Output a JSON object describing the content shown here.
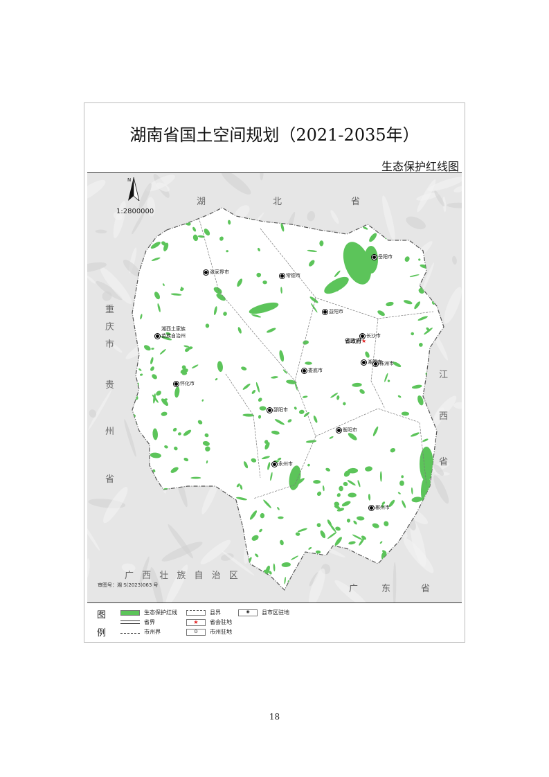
{
  "title": "湖南省国土空间规划（2021-2035年）",
  "subtitle": "生态保护红线图",
  "map": {
    "north_label": "N",
    "scale": "1:2800000",
    "approval": "审图号：湘 S(2023)063 号",
    "neighbors": {
      "hubei": [
        "湖",
        "北",
        "省"
      ],
      "chongqing": [
        "重",
        "庆",
        "市"
      ],
      "guizhou": [
        "贵",
        "州",
        "省"
      ],
      "jiangxi": [
        "江",
        "西",
        "省"
      ],
      "guangxi": "广 西 壮 族 自 治 区",
      "guangdong": [
        "广",
        "东",
        "省"
      ]
    },
    "cities": [
      {
        "name": "岳阳市"
      },
      {
        "name": "常德市"
      },
      {
        "name": "张家界市"
      },
      {
        "name": "湘西土家族苗族自治州"
      },
      {
        "name": "益阳市"
      },
      {
        "name": "长沙市"
      },
      {
        "name": "湘潭市"
      },
      {
        "name": "株洲市"
      },
      {
        "name": "娄底市"
      },
      {
        "name": "怀化市"
      },
      {
        "name": "邵阳市"
      },
      {
        "name": "衡阳市"
      },
      {
        "name": "永州市"
      },
      {
        "name": "郴州市"
      }
    ],
    "capital": "省政府",
    "colors": {
      "red_line": "#5cc45a",
      "province": "#ffffff",
      "outside": "#e3e3e3",
      "capital_star": "#e02020"
    }
  },
  "legend": {
    "head1": "图",
    "head2": "例",
    "items": [
      "生态保护红线",
      "省界",
      "市州界",
      "县界",
      "省会驻地",
      "市州驻地",
      "县市区驻地"
    ]
  },
  "page_number": "18"
}
